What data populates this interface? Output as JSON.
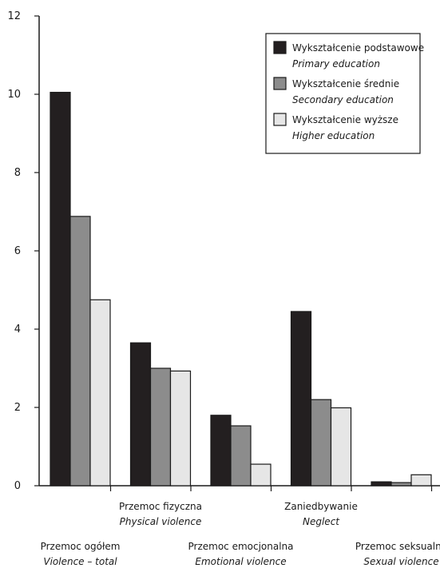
{
  "chart_data": {
    "type": "bar",
    "title": "",
    "xlabel": "",
    "ylabel": "",
    "ylim": [
      0,
      12
    ],
    "yticks": [
      "0",
      "2",
      "4",
      "6",
      "8",
      "10",
      "12"
    ],
    "grid": false,
    "legend_position": "top-right",
    "categories": [
      {
        "pl": "Przemoc ogółem",
        "en": "Violence – total"
      },
      {
        "pl": "Przemoc fizyczna",
        "en": "Physical violence"
      },
      {
        "pl": "Przemoc emocjonalna",
        "en": "Emotional violence"
      },
      {
        "pl": "Zaniedbywanie",
        "en": "Neglect"
      },
      {
        "pl": "Przemoc seksualna",
        "en": "Sexual violence"
      }
    ],
    "series": [
      {
        "name": "Wykształcenie podstawowe",
        "name_en": "Primary education",
        "color": "#231f20",
        "values": [
          10.05,
          3.65,
          1.8,
          4.45,
          0.1
        ]
      },
      {
        "name": "Wykształcenie średnie",
        "name_en": "Secondary education",
        "color": "#8c8c8c",
        "values": [
          6.88,
          3.0,
          1.53,
          2.2,
          0.08
        ]
      },
      {
        "name": "Wykształcenie wyższe",
        "name_en": "Higher education",
        "color": "#e6e6e6",
        "values": [
          4.75,
          2.93,
          0.55,
          1.99,
          0.28
        ]
      }
    ]
  }
}
